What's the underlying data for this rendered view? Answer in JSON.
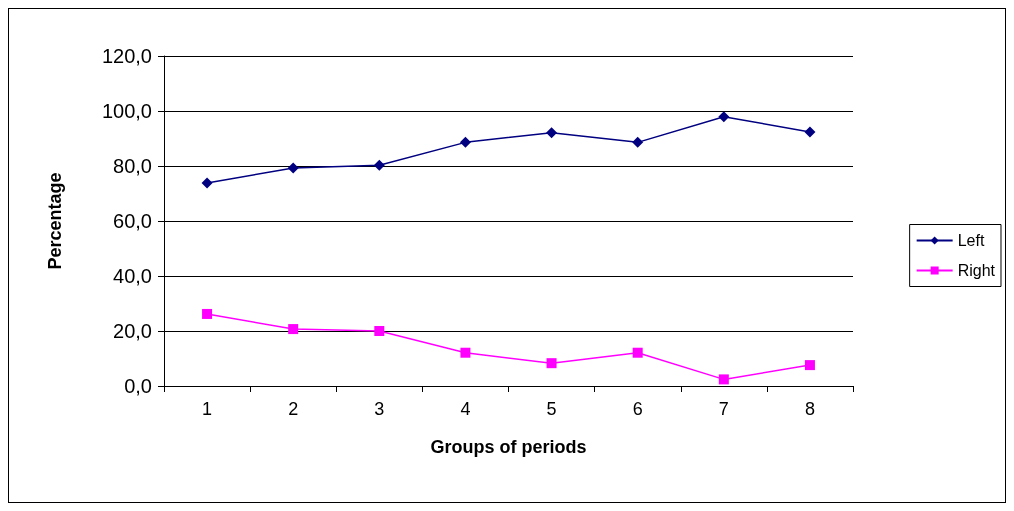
{
  "chart_data": {
    "type": "line",
    "xlabel": "Groups of periods",
    "ylabel": "Percentage",
    "categories": [
      "1",
      "2",
      "3",
      "4",
      "5",
      "6",
      "7",
      "8"
    ],
    "series": [
      {
        "name": "Left",
        "color": "#000080",
        "marker": "diamond",
        "values": [
          73.8,
          79.3,
          80.3,
          88.6,
          92.1,
          88.6,
          97.9,
          92.4
        ]
      },
      {
        "name": "Right",
        "color": "#ff00ff",
        "marker": "square",
        "values": [
          26.2,
          20.7,
          20.0,
          12.1,
          8.3,
          12.1,
          2.4,
          7.6
        ]
      }
    ],
    "ylim": [
      0,
      120
    ],
    "yticks": [
      {
        "value": 0,
        "label": "0,0"
      },
      {
        "value": 20,
        "label": "20,0"
      },
      {
        "value": 40,
        "label": "40,0"
      },
      {
        "value": 60,
        "label": "60,0"
      },
      {
        "value": 80,
        "label": "80,0"
      },
      {
        "value": 100,
        "label": "100,0"
      },
      {
        "value": 120,
        "label": "120,0"
      }
    ],
    "grid": "y",
    "legend": "right",
    "line_style": "solid"
  }
}
